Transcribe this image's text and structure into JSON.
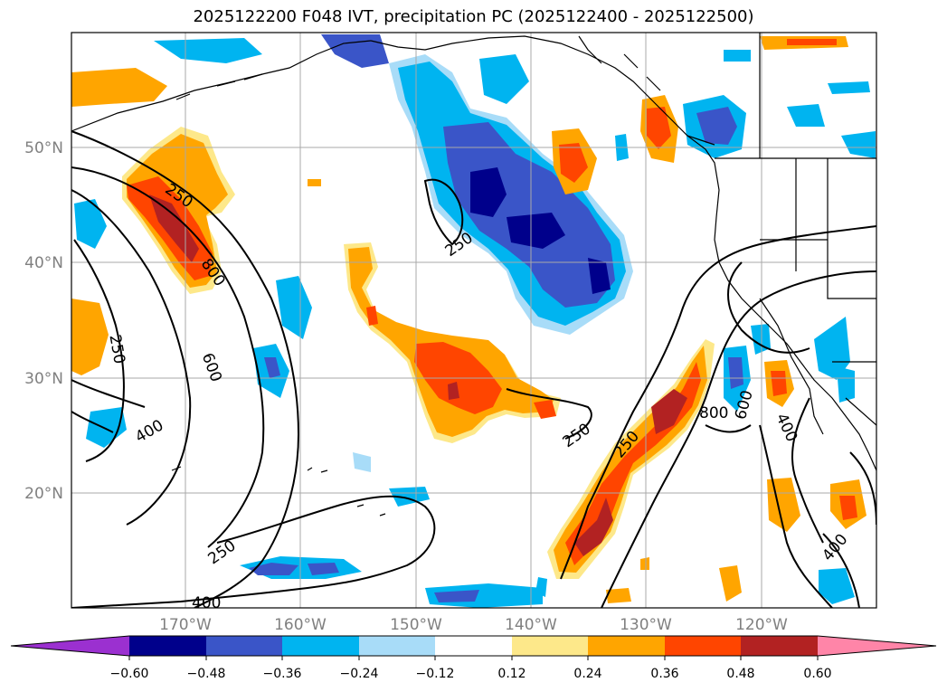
{
  "title": "2025122200 F048 IVT, precipitation PC (2025122400 - 2025122500)",
  "lat_labels": [
    "50°N",
    "40°N",
    "30°N",
    "20°N"
  ],
  "lon_labels": [
    "170°W",
    "160°W",
    "150°W",
    "140°W",
    "130°W",
    "120°W"
  ],
  "contour_labels": [
    "250",
    "250",
    "250",
    "250",
    "250",
    "250",
    "400",
    "400",
    "400",
    "400",
    "600",
    "600",
    "800",
    "800"
  ],
  "colorbar": {
    "ticks": [
      "−0.60",
      "−0.48",
      "−0.36",
      "−0.24",
      "−0.12",
      "0.12",
      "0.24",
      "0.36",
      "0.48",
      "0.60"
    ],
    "colors": [
      "#9b30d0",
      "#00008b",
      "#3a55c8",
      "#00b4f0",
      "#a8dcf8",
      "#ffffff",
      "#fde88a",
      "#ffa500",
      "#ff4500",
      "#b22222",
      "#ff85a8"
    ]
  },
  "legend_colors": {
    "neg_strong": "#00008b",
    "neg_med": "#3a55c8",
    "neg_weak": "#00b4f0",
    "neg_faint": "#a8dcf8",
    "pos_faint": "#fde88a",
    "pos_weak": "#ffa500",
    "pos_med": "#ff4500",
    "pos_strong": "#b22222"
  }
}
